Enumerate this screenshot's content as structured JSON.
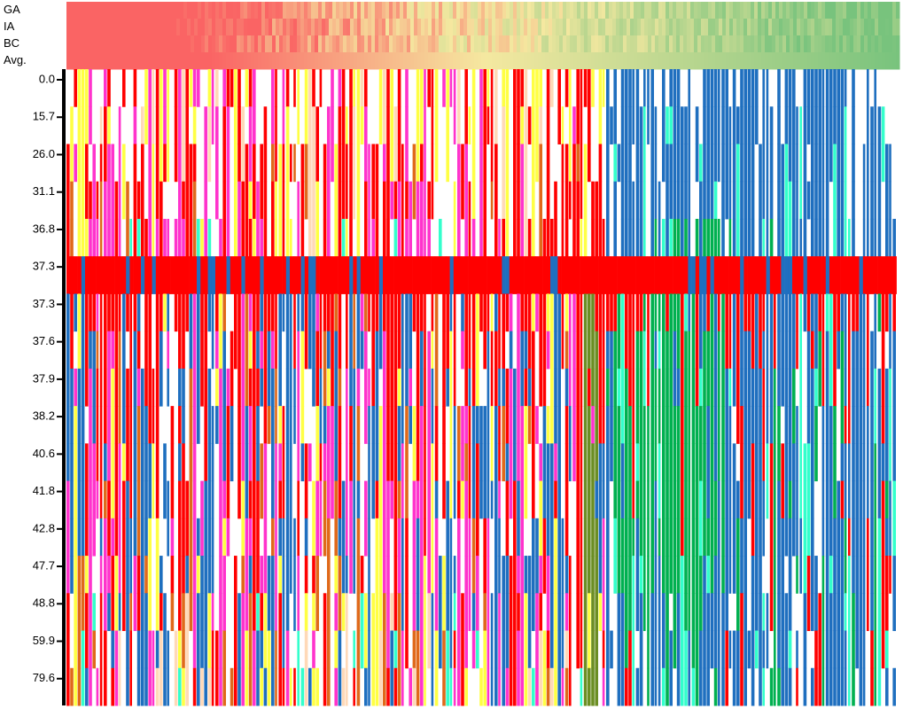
{
  "chart_data": {
    "type": "matrix",
    "row_labels": [
      "GA",
      "IA",
      "BC",
      "Avg."
    ],
    "categories": [
      "0.0",
      "15.7",
      "26.0",
      "31.1",
      "36.8",
      "37.3",
      "37.3",
      "37.6",
      "37.9",
      "38.2",
      "40.6",
      "41.8",
      "42.8",
      "47.7",
      "48.8",
      "59.9",
      "79.6"
    ]
  }
}
